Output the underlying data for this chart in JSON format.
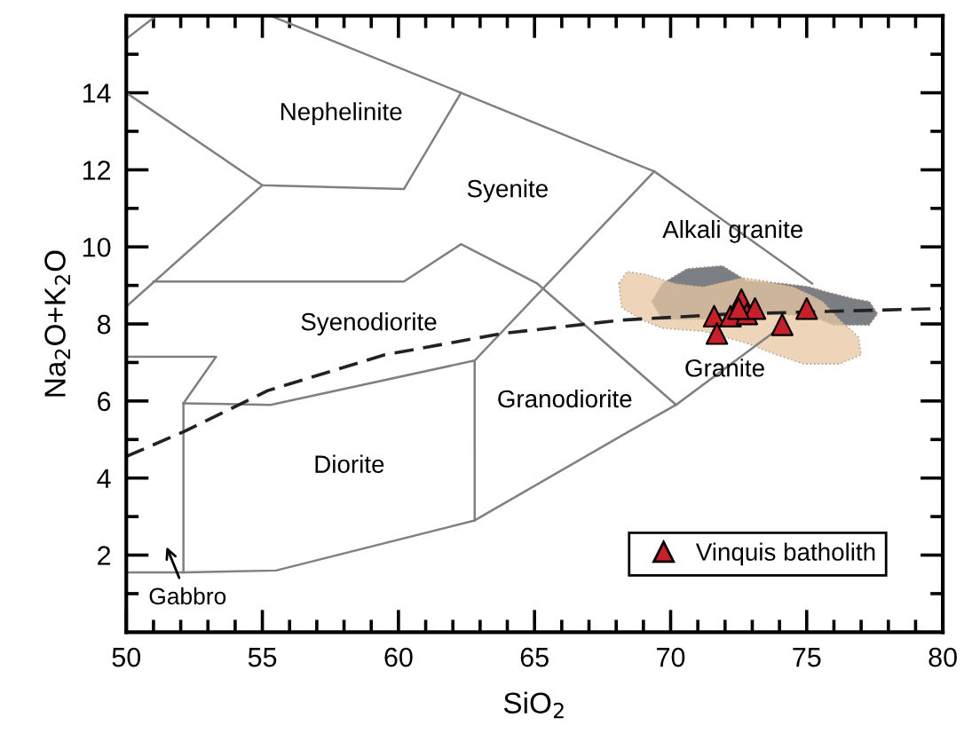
{
  "chart_data": {
    "type": "scatter",
    "xlabel": "SiO$_{2}$",
    "ylabel": "Na$_{2}$O+K$_{2}$O",
    "xlim": [
      50,
      80
    ],
    "ylim": [
      0,
      16
    ],
    "xticks": [
      50,
      55,
      60,
      65,
      70,
      75,
      80
    ],
    "yticks": [
      2,
      4,
      6,
      8,
      10,
      12,
      14
    ],
    "grid": false,
    "legend": "bottom right",
    "series": [
      {
        "type": "area",
        "color": "#7b7e82",
        "x": [
          69.3,
          69.7,
          70.6,
          71.9,
          72.8,
          74.1,
          75.05,
          75.8,
          76.7,
          77.3,
          77.6,
          77.3,
          76.0,
          75.2,
          73.4,
          71.2,
          69.7
        ],
        "values": [
          8.58,
          9.05,
          9.43,
          9.51,
          9.12,
          9.05,
          8.97,
          8.82,
          8.66,
          8.58,
          8.27,
          7.97,
          7.97,
          8.2,
          8.27,
          8.12,
          8.12
        ]
      },
      {
        "type": "area",
        "color": "#e9c8a4",
        "x": [
          68.1,
          68.4,
          69.1,
          70.2,
          71.2,
          72.6,
          73.4,
          74.5,
          75.2,
          75.6,
          76.2,
          76.9,
          77.0,
          76.2,
          74.9,
          73.9,
          72.8,
          71.2,
          69.7,
          68.9,
          68.2
        ],
        "values": [
          9.05,
          9.36,
          9.28,
          9.05,
          8.97,
          9.2,
          9.12,
          8.97,
          8.74,
          8.58,
          8.12,
          7.66,
          7.2,
          6.96,
          6.96,
          7.2,
          7.5,
          7.81,
          7.89,
          8.12,
          8.43
        ]
      },
      {
        "type": "line",
        "color": "#808080",
        "x": [
          50,
          51.1
        ],
        "values": [
          15.4,
          16
        ]
      },
      {
        "type": "line",
        "color": "#808080",
        "x": [
          55.3,
          62.3,
          68.2,
          69.4,
          75.2
        ],
        "values": [
          16,
          14,
          12.3,
          11.96,
          9.05
        ]
      },
      {
        "type": "line",
        "color": "#808080",
        "x": [
          50,
          55.0,
          60.2,
          62.3
        ],
        "values": [
          14,
          11.6,
          11.5,
          14
        ]
      },
      {
        "type": "line",
        "color": "#808080",
        "x": [
          50,
          55.0
        ],
        "values": [
          8.45,
          11.6
        ]
      },
      {
        "type": "line",
        "color": "#808080",
        "x": [
          51.0,
          60.2,
          62.3,
          65.1,
          70.2
        ],
        "values": [
          9.1,
          9.1,
          10.07,
          9.05,
          5.9
        ]
      },
      {
        "type": "line",
        "color": "#808080",
        "x": [
          62.8,
          69.4
        ],
        "values": [
          7.05,
          11.96
        ]
      },
      {
        "type": "line",
        "color": "#808080",
        "x": [
          52.1,
          55.3,
          62.8,
          62.8
        ],
        "values": [
          5.94,
          5.9,
          7.05,
          2.9
        ]
      },
      {
        "type": "line",
        "color": "#808080",
        "x": [
          50,
          52.1,
          55.5,
          62.8,
          68.2,
          70.2,
          74.2
        ],
        "values": [
          1.55,
          1.55,
          1.6,
          2.9,
          5.1,
          5.9,
          8.0
        ]
      },
      {
        "type": "line",
        "color": "#808080",
        "x": [
          52.1,
          52.1
        ],
        "values": [
          1.55,
          5.94
        ]
      },
      {
        "type": "line",
        "color": "#808080",
        "x": [
          50,
          53.3,
          52.1
        ],
        "values": [
          7.15,
          7.15,
          5.94
        ]
      },
      {
        "type": "line",
        "color": "#222222",
        "line_style": "dashed",
        "x": [
          50,
          52.1,
          55.2,
          59.5,
          63.8,
          68.2,
          72,
          76,
          80
        ],
        "values": [
          4.56,
          5.2,
          6.27,
          7.2,
          7.75,
          8.1,
          8.25,
          8.33,
          8.4
        ]
      },
      {
        "name": "Vinquis batholith",
        "color": "#c8202a",
        "marker": "triangle",
        "x": [
          71.6,
          71.7,
          72.2,
          72.6,
          72.8,
          73.1,
          72.5,
          74.1,
          75.0
        ],
        "values": [
          8.2,
          7.75,
          8.2,
          8.63,
          8.26,
          8.4,
          8.4,
          7.98,
          8.4
        ]
      }
    ],
    "annotations": [
      "Nephelinite",
      "Syenite",
      "Alkali granite",
      "Syenodiorite",
      "Granodiorite",
      "Granite",
      "Diorite",
      "Gabbro"
    ]
  }
}
